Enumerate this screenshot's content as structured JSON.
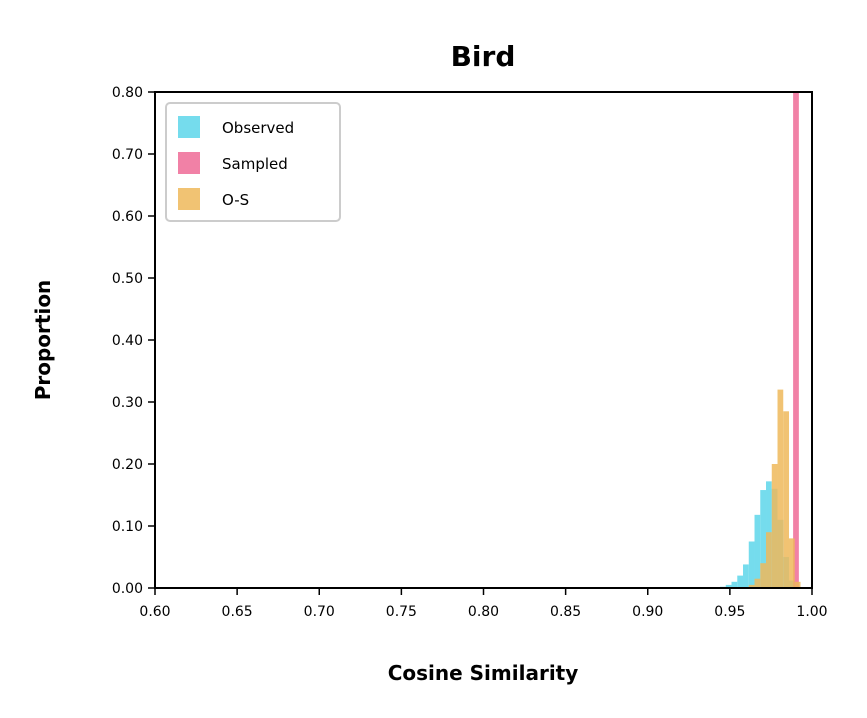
{
  "chart_data": {
    "type": "histogram",
    "title": "Bird",
    "xlabel": "Cosine Similarity",
    "ylabel": "Proportion",
    "xlim": [
      0.6,
      1.0
    ],
    "ylim": [
      0.0,
      0.8
    ],
    "xticks": [
      "0.60",
      "0.65",
      "0.70",
      "0.75",
      "0.80",
      "0.85",
      "0.90",
      "0.95",
      "1.00"
    ],
    "yticks": [
      "0.00",
      "0.10",
      "0.20",
      "0.30",
      "0.40",
      "0.50",
      "0.60",
      "0.70",
      "0.80"
    ],
    "legend_position": "upper-left",
    "grid": false,
    "series": [
      {
        "name": "Observed",
        "color": "#5dd6ea",
        "bins": [
          {
            "x0": 0.944,
            "x1": 0.9475,
            "value": 0.002
          },
          {
            "x0": 0.9475,
            "x1": 0.951,
            "value": 0.005
          },
          {
            "x0": 0.951,
            "x1": 0.9545,
            "value": 0.01
          },
          {
            "x0": 0.9545,
            "x1": 0.958,
            "value": 0.02
          },
          {
            "x0": 0.958,
            "x1": 0.9615,
            "value": 0.038
          },
          {
            "x0": 0.9615,
            "x1": 0.965,
            "value": 0.075
          },
          {
            "x0": 0.965,
            "x1": 0.9685,
            "value": 0.118
          },
          {
            "x0": 0.9685,
            "x1": 0.972,
            "value": 0.158
          },
          {
            "x0": 0.972,
            "x1": 0.9755,
            "value": 0.172
          },
          {
            "x0": 0.9755,
            "x1": 0.979,
            "value": 0.16
          },
          {
            "x0": 0.979,
            "x1": 0.9825,
            "value": 0.11
          },
          {
            "x0": 0.9825,
            "x1": 0.986,
            "value": 0.05
          },
          {
            "x0": 0.986,
            "x1": 0.9895,
            "value": 0.012
          }
        ]
      },
      {
        "name": "Sampled",
        "color": "#ef6b96",
        "bins": [
          {
            "x0": 0.9885,
            "x1": 0.992,
            "value": 0.8
          }
        ]
      },
      {
        "name": "O-S",
        "color": "#efb95a",
        "bins": [
          {
            "x0": 0.9615,
            "x1": 0.965,
            "value": 0.005
          },
          {
            "x0": 0.965,
            "x1": 0.9685,
            "value": 0.015
          },
          {
            "x0": 0.9685,
            "x1": 0.972,
            "value": 0.04
          },
          {
            "x0": 0.972,
            "x1": 0.9755,
            "value": 0.09
          },
          {
            "x0": 0.9755,
            "x1": 0.979,
            "value": 0.2
          },
          {
            "x0": 0.979,
            "x1": 0.9825,
            "value": 0.32
          },
          {
            "x0": 0.9825,
            "x1": 0.986,
            "value": 0.285
          },
          {
            "x0": 0.986,
            "x1": 0.9895,
            "value": 0.08
          },
          {
            "x0": 0.9895,
            "x1": 0.993,
            "value": 0.01
          }
        ]
      }
    ]
  }
}
